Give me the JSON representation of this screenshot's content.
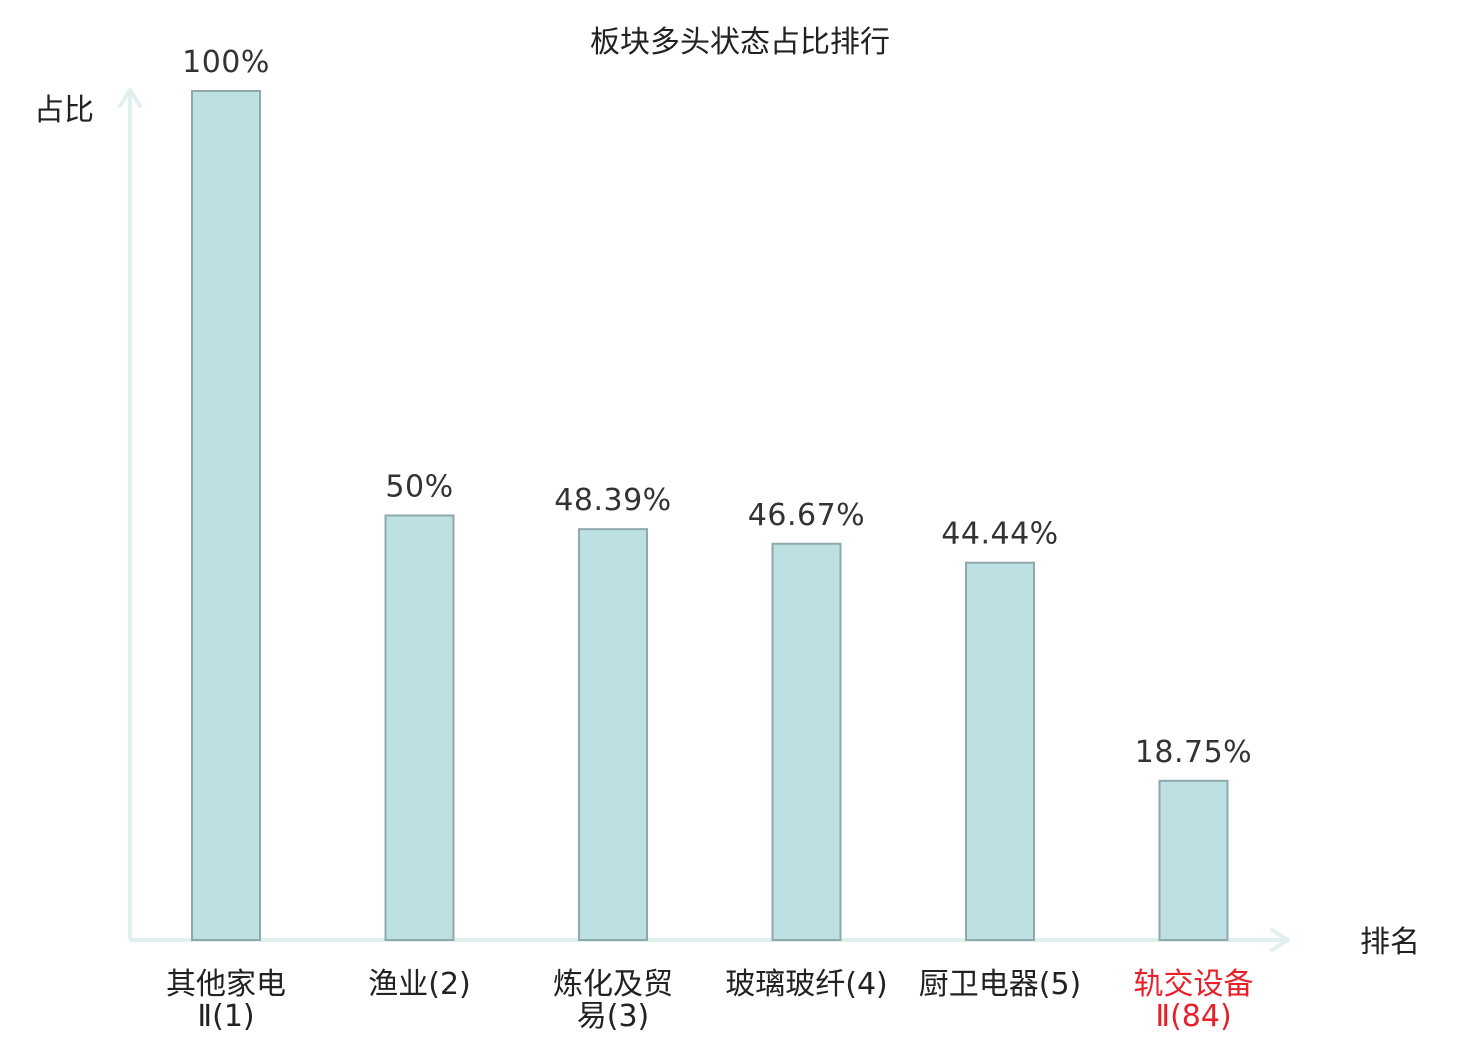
{
  "chart_data": {
    "type": "bar",
    "title": "板块多头状态占比排行",
    "ylabel": "占比",
    "xlabel": "排名",
    "ylim": [
      0,
      100
    ],
    "grid": false,
    "legend": "none",
    "categories": [
      [
        "其他家电",
        "Ⅱ(1)"
      ],
      [
        "渔业(2)"
      ],
      [
        "炼化及贸",
        "易(3)"
      ],
      [
        "玻璃玻纤(4)"
      ],
      [
        "厨卫电器(5)"
      ],
      [
        "轨交设备",
        "Ⅱ(84)"
      ]
    ],
    "values": [
      100,
      50,
      48.39,
      46.67,
      44.44,
      18.75
    ],
    "value_labels": [
      "100%",
      "50%",
      "48.39%",
      "46.67%",
      "44.44%",
      "18.75%"
    ],
    "highlight_index": 5
  },
  "colors": {
    "bar_fill": "#bde0e3",
    "bar_stroke": "#8fa8ab",
    "axis": "#dff1ef",
    "highlight_text": "#e8202a",
    "text": "#222222"
  }
}
